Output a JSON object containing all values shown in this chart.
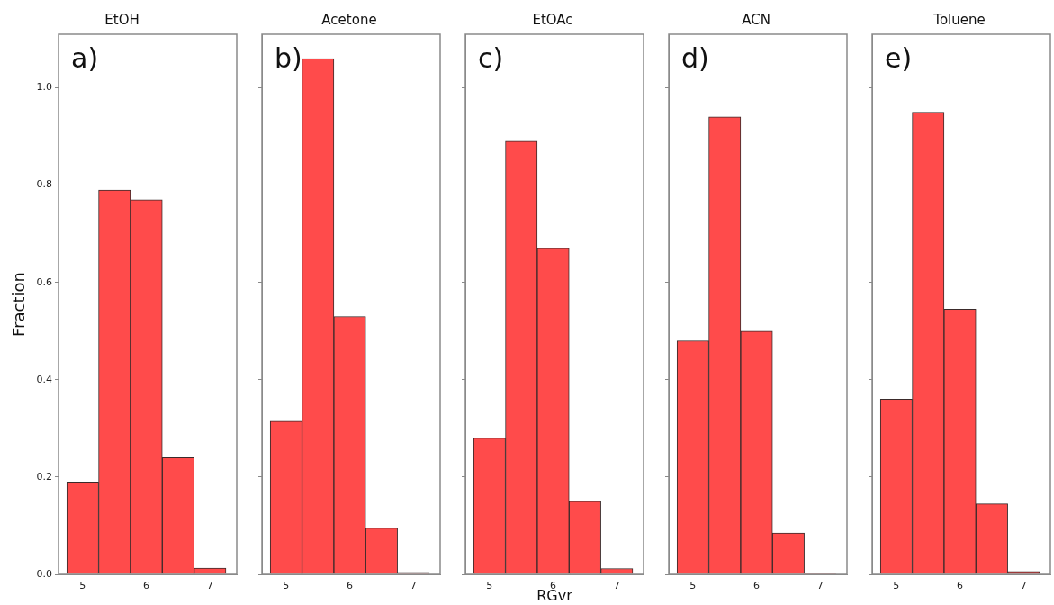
{
  "chart_data": [
    {
      "type": "histogram",
      "title": "EtOH",
      "ylabel": "Fraction",
      "annotations": [
        "a)"
      ],
      "color": "#ff4b4b",
      "bins": [
        4.75,
        5.25,
        5.75,
        6.25,
        6.75,
        7.25
      ],
      "values": [
        0.19,
        0.79,
        0.77,
        0.24,
        0.013
      ],
      "xlim": [
        4.62,
        7.42
      ],
      "xticks": [
        5,
        6,
        7
      ],
      "ylim": [
        0,
        1.11
      ],
      "yticks": [
        {
          "value": 0,
          "label": "0.0"
        },
        0.2,
        0.4,
        0.6,
        0.8,
        {
          "value": 1,
          "label": "1.0"
        }
      ],
      "grid": false,
      "legend": false
    },
    {
      "type": "histogram",
      "title": "Acetone",
      "annotations": [
        "b)"
      ],
      "color": "#ff4b4b",
      "bins": [
        4.75,
        5.25,
        5.75,
        6.25,
        6.75,
        7.25
      ],
      "values": [
        0.315,
        1.06,
        0.53,
        0.095,
        0.004
      ],
      "xlim": [
        4.62,
        7.42
      ],
      "xticks": [
        5,
        6,
        7
      ],
      "ylim": [
        0,
        1.11
      ],
      "yticks": [
        {
          "value": 0,
          "label": null
        },
        {
          "value": 0.2,
          "label": null
        },
        {
          "value": 0.4,
          "label": null
        },
        {
          "value": 0.6,
          "label": null
        },
        {
          "value": 0.8,
          "label": null
        },
        {
          "value": 1,
          "label": null
        }
      ],
      "tick_labels": "x",
      "grid": false,
      "legend": false
    },
    {
      "type": "histogram",
      "title": "EtOAc",
      "xlabel": "RGvr",
      "annotations": [
        "c)"
      ],
      "color": "#ff4b4b",
      "bins": [
        4.75,
        5.25,
        5.75,
        6.25,
        6.75,
        7.25
      ],
      "values": [
        0.28,
        0.89,
        0.67,
        0.15,
        0.012
      ],
      "xlim": [
        4.62,
        7.42
      ],
      "xticks": [
        5,
        6,
        7
      ],
      "ylim": [
        0,
        1.11
      ],
      "yticks": [
        {
          "value": 0,
          "label": null
        },
        {
          "value": 0.2,
          "label": null
        },
        {
          "value": 0.4,
          "label": null
        },
        {
          "value": 0.6,
          "label": null
        },
        {
          "value": 0.8,
          "label": null
        },
        {
          "value": 1,
          "label": null
        }
      ],
      "tick_labels": "x",
      "grid": false,
      "legend": false
    },
    {
      "type": "histogram",
      "title": "ACN",
      "annotations": [
        "d)"
      ],
      "color": "#ff4b4b",
      "bins": [
        4.75,
        5.25,
        5.75,
        6.25,
        6.75,
        7.25
      ],
      "values": [
        0.48,
        0.94,
        0.5,
        0.085,
        0.003
      ],
      "xlim": [
        4.62,
        7.42
      ],
      "xticks": [
        5,
        6,
        7
      ],
      "ylim": [
        0,
        1.11
      ],
      "yticks": [
        {
          "value": 0,
          "label": null
        },
        {
          "value": 0.2,
          "label": null
        },
        {
          "value": 0.4,
          "label": null
        },
        {
          "value": 0.6,
          "label": null
        },
        {
          "value": 0.8,
          "label": null
        },
        {
          "value": 1,
          "label": null
        }
      ],
      "tick_labels": "x",
      "grid": false,
      "legend": false
    },
    {
      "type": "histogram",
      "title": "Toluene",
      "annotations": [
        "e)"
      ],
      "color": "#ff4b4b",
      "bins": [
        4.75,
        5.25,
        5.75,
        6.25,
        6.75,
        7.25
      ],
      "values": [
        0.36,
        0.95,
        0.545,
        0.145,
        0.006
      ],
      "xlim": [
        4.62,
        7.42
      ],
      "xticks": [
        5,
        6,
        7
      ],
      "ylim": [
        0,
        1.11
      ],
      "yticks": [
        {
          "value": 0,
          "label": null
        },
        {
          "value": 0.2,
          "label": null
        },
        {
          "value": 0.4,
          "label": null
        },
        {
          "value": 0.6,
          "label": null
        },
        {
          "value": 0.8,
          "label": null
        },
        {
          "value": 1,
          "label": null
        }
      ],
      "tick_labels": "x",
      "grid": false,
      "legend": false
    }
  ]
}
